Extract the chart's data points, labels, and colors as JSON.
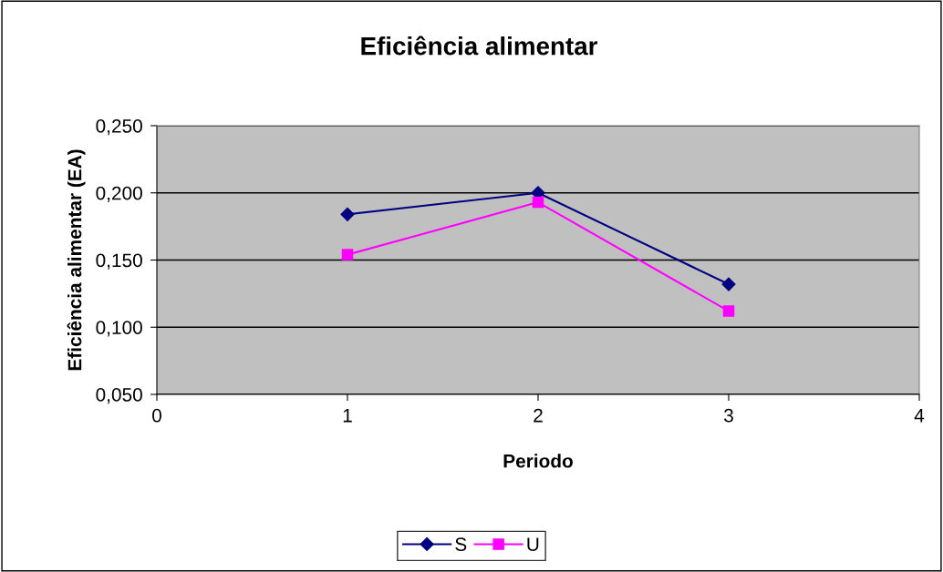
{
  "chart_data": {
    "type": "line",
    "title": "Eficiência alimentar",
    "xlabel": "Periodo",
    "ylabel": "Eficiência alimentar (EA)",
    "x": [
      1,
      2,
      3
    ],
    "series": [
      {
        "name": "S",
        "color": "#000080",
        "values": [
          0.184,
          0.2,
          0.132
        ],
        "marker": "diamond"
      },
      {
        "name": "U",
        "color": "#ff00ff",
        "values": [
          0.154,
          0.193,
          0.112
        ],
        "marker": "square"
      }
    ],
    "xlim": [
      0,
      4
    ],
    "xticks": [
      0,
      1,
      2,
      3,
      4
    ],
    "ylim": [
      0.05,
      0.25
    ],
    "yticks": [
      {
        "value": 0.05,
        "label": "0,050"
      },
      {
        "value": 0.1,
        "label": "0,100"
      },
      {
        "value": 0.15,
        "label": "0,150"
      },
      {
        "value": 0.2,
        "label": "0,200"
      },
      {
        "value": 0.25,
        "label": "0,250"
      }
    ],
    "grid": "y",
    "legend": "bottom",
    "line_style": "solid"
  }
}
